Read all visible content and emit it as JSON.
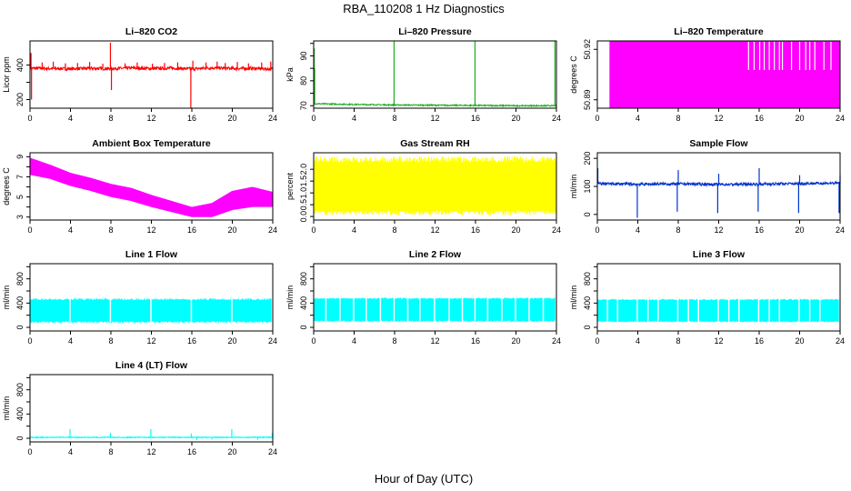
{
  "page": {
    "title": "RBA_110208  1 Hz Diagnostics",
    "x_axis_label": "Hour of Day (UTC)"
  },
  "chart_data": [
    {
      "type": "line",
      "title": "Li–820 CO2",
      "ylabel": "Licor ppm",
      "color": "#ff0000",
      "xlim": [
        0,
        24
      ],
      "xticks": [
        0,
        4,
        8,
        12,
        16,
        20,
        24
      ],
      "ylim": [
        150,
        540
      ],
      "yticks": [
        200,
        300,
        400
      ],
      "yticklabels": [
        "200",
        "",
        "400"
      ],
      "series": [
        {
          "baseline": [
            [
              0,
              382
            ],
            [
              2,
              380
            ],
            [
              4,
              378
            ],
            [
              6,
              381
            ],
            [
              8,
              379
            ],
            [
              10,
              383
            ],
            [
              12,
              380
            ],
            [
              14,
              382
            ],
            [
              16,
              378
            ],
            [
              18,
              384
            ],
            [
              20,
              380
            ],
            [
              22,
              381
            ],
            [
              24,
              376
            ]
          ],
          "noise": 9,
          "spikes": [
            [
              0.1,
              470
            ],
            [
              0.15,
              200
            ],
            [
              1.2,
              415
            ],
            [
              2.3,
              420
            ],
            [
              3.5,
              410
            ],
            [
              4.7,
              412
            ],
            [
              5.9,
              418
            ],
            [
              7.2,
              408
            ],
            [
              7.95,
              530
            ],
            [
              8.05,
              255
            ],
            [
              9.4,
              410
            ],
            [
              10.6,
              415
            ],
            [
              12.1,
              408
            ],
            [
              13.3,
              412
            ],
            [
              14.6,
              416
            ],
            [
              15.9,
              150
            ],
            [
              16.1,
              425
            ],
            [
              17.4,
              415
            ],
            [
              18.5,
              420
            ],
            [
              19.3,
              412
            ],
            [
              20.5,
              418
            ],
            [
              21.6,
              410
            ],
            [
              22.9,
              415
            ],
            [
              23.8,
              420
            ]
          ]
        }
      ]
    },
    {
      "type": "line",
      "title": "Li–820 Pressure",
      "ylabel": "kPa",
      "color": "#22aa22",
      "xlim": [
        0,
        24
      ],
      "xticks": [
        0,
        4,
        8,
        12,
        16,
        20,
        24
      ],
      "ylim": [
        69,
        96
      ],
      "yticks": [
        70,
        75,
        80,
        85,
        90,
        95
      ],
      "yticklabels": [
        "70",
        "",
        "80",
        "",
        "90",
        ""
      ],
      "series": [
        {
          "baseline": [
            [
              0,
              70.8
            ],
            [
              4,
              70.5
            ],
            [
              8,
              70.3
            ],
            [
              12,
              70.2
            ],
            [
              16,
              70.1
            ],
            [
              20,
              70.0
            ],
            [
              24,
              70.0
            ]
          ],
          "noise": 0.25,
          "spikes": [
            [
              0.05,
              93
            ],
            [
              0.1,
              85
            ],
            [
              7.95,
              96
            ],
            [
              15.95,
              96
            ],
            [
              23.85,
              96
            ]
          ]
        }
      ]
    },
    {
      "type": "line",
      "title": "Li–820 Temperature",
      "ylabel": "degrees C",
      "color": "#ff00ff",
      "xlim": [
        0,
        24
      ],
      "xticks": [
        0,
        4,
        8,
        12,
        16,
        20,
        24
      ],
      "ylim": [
        50.885,
        50.925
      ],
      "yticks": [
        50.89,
        50.92
      ],
      "yticklabels": [
        "50.89",
        "50.92"
      ],
      "series": [
        {
          "fill_range": [
            50.885,
            50.925
          ],
          "fill_x": [
            1.2,
            24
          ],
          "gaps": [
            14.95,
            15.5,
            16.05,
            16.5,
            17.0,
            17.5,
            18.0,
            18.3,
            19.2,
            20.0,
            20.6,
            21.0,
            21.5,
            22.4,
            23.1
          ]
        }
      ]
    },
    {
      "type": "line",
      "title": "Ambient Box Temperature",
      "ylabel": "degrees C",
      "color": "#ff00ff",
      "xlim": [
        0,
        24
      ],
      "xticks": [
        0,
        4,
        8,
        12,
        16,
        20,
        24
      ],
      "ylim": [
        2.7,
        9.4
      ],
      "yticks": [
        3,
        4,
        5,
        6,
        7,
        8,
        9
      ],
      "yticklabels": [
        "3",
        "",
        "5",
        "",
        "7",
        "",
        "9"
      ],
      "series": [
        {
          "band_low": [
            [
              0,
              7.2
            ],
            [
              2,
              6.8
            ],
            [
              4,
              6.1
            ],
            [
              6,
              5.6
            ],
            [
              8,
              5.0
            ],
            [
              10,
              4.6
            ],
            [
              12,
              4.0
            ],
            [
              14,
              3.5
            ],
            [
              16,
              3.0
            ],
            [
              18,
              3.0
            ],
            [
              20,
              3.7
            ],
            [
              22,
              4.0
            ],
            [
              24,
              4.0
            ]
          ],
          "band_high": [
            [
              0,
              8.9
            ],
            [
              2,
              8.2
            ],
            [
              4,
              7.4
            ],
            [
              6,
              6.9
            ],
            [
              8,
              6.3
            ],
            [
              10,
              5.9
            ],
            [
              12,
              5.2
            ],
            [
              14,
              4.6
            ],
            [
              16,
              4.0
            ],
            [
              18,
              4.4
            ],
            [
              20,
              5.6
            ],
            [
              22,
              6.0
            ],
            [
              24,
              5.5
            ]
          ]
        }
      ]
    },
    {
      "type": "line",
      "title": "Gas Stream RH",
      "ylabel": "percent",
      "color": "#ffff00",
      "xlim": [
        0,
        24
      ],
      "xticks": [
        0,
        4,
        8,
        12,
        16,
        20,
        24
      ],
      "ylim": [
        -0.15,
        2.7
      ],
      "yticks": [
        0.0,
        0.5,
        1.0,
        1.5,
        2.0
      ],
      "yticklabels": [
        "0.0",
        "0.5",
        "1.0",
        "1.5",
        "2.0"
      ],
      "series": [
        {
          "band_low": [
            [
              0,
              0.25
            ],
            [
              24,
              0.25
            ]
          ],
          "band_high": [
            [
              0,
              2.3
            ],
            [
              24,
              2.3
            ]
          ],
          "band_min": [
            [
              0,
              0.05
            ],
            [
              24,
              0.05
            ]
          ],
          "band_max": [
            [
              0,
              2.55
            ],
            [
              24,
              2.55
            ]
          ]
        }
      ]
    },
    {
      "type": "line",
      "title": "Sample Flow",
      "ylabel": "ml/min",
      "color": "#0033cc",
      "xlim": [
        0,
        24
      ],
      "xticks": [
        0,
        4,
        8,
        12,
        16,
        20,
        24
      ],
      "ylim": [
        -20,
        220
      ],
      "yticks": [
        0,
        100,
        200
      ],
      "yticklabels": [
        "0",
        "100",
        "200"
      ],
      "series": [
        {
          "baseline": [
            [
              0,
              110
            ],
            [
              4,
              108
            ],
            [
              8,
              109
            ],
            [
              12,
              107
            ],
            [
              16,
              108
            ],
            [
              20,
              110
            ],
            [
              24,
              112
            ]
          ],
          "noise": 5,
          "spikes": [
            [
              0.05,
              165
            ],
            [
              3.95,
              -12
            ],
            [
              7.9,
              10
            ],
            [
              8.0,
              158
            ],
            [
              11.9,
              5
            ],
            [
              12.0,
              145
            ],
            [
              15.9,
              10
            ],
            [
              16.0,
              165
            ],
            [
              19.9,
              5
            ],
            [
              20.0,
              140
            ],
            [
              23.9,
              5
            ],
            [
              24.0,
              140
            ]
          ]
        }
      ]
    },
    {
      "type": "line",
      "title": "Line 1 Flow",
      "ylabel": "ml/min",
      "color": "#00ffff",
      "xlim": [
        0,
        24
      ],
      "xticks": [
        0,
        4,
        8,
        12,
        16,
        20,
        24
      ],
      "ylim": [
        -60,
        1050
      ],
      "yticks": [
        0,
        200,
        400,
        600,
        800,
        1000
      ],
      "yticklabels": [
        "0",
        "",
        "400",
        "",
        "800",
        ""
      ],
      "series": [
        {
          "band_low": [
            [
              0,
              100
            ],
            [
              24,
              100
            ]
          ],
          "band_high": [
            [
              0,
              450
            ],
            [
              24,
              450
            ]
          ],
          "band_min": [
            [
              0,
              70
            ],
            [
              24,
              70
            ]
          ],
          "band_max": [
            [
              0,
              480
            ],
            [
              24,
              480
            ]
          ],
          "gaps": [
            3.95,
            7.95,
            11.95,
            15.95,
            19.95,
            23.95
          ]
        }
      ]
    },
    {
      "type": "line",
      "title": "Line 2 Flow",
      "ylabel": "ml/min",
      "color": "#00ffff",
      "xlim": [
        0,
        24
      ],
      "xticks": [
        0,
        4,
        8,
        12,
        16,
        20,
        24
      ],
      "ylim": [
        -60,
        1050
      ],
      "yticks": [
        0,
        200,
        400,
        600,
        800,
        1000
      ],
      "yticklabels": [
        "0",
        "",
        "400",
        "",
        "800",
        ""
      ],
      "series": [
        {
          "band_low": [
            [
              0,
              110
            ],
            [
              24,
              110
            ]
          ],
          "band_high": [
            [
              0,
              470
            ],
            [
              24,
              470
            ]
          ],
          "band_min": [
            [
              0,
              90
            ],
            [
              24,
              90
            ]
          ],
          "band_max": [
            [
              0,
              490
            ],
            [
              24,
              490
            ]
          ],
          "gaps": [
            1.2,
            2.6,
            3.95,
            5.2,
            6.6,
            7.95,
            9.3,
            10.5,
            11.95,
            13.4,
            14.7,
            15.95,
            17.2,
            18.6,
            19.95,
            21.3,
            22.7,
            23.95
          ]
        }
      ]
    },
    {
      "type": "line",
      "title": "Line 3 Flow",
      "ylabel": "ml/min",
      "color": "#00ffff",
      "xlim": [
        0,
        24
      ],
      "xticks": [
        0,
        4,
        8,
        12,
        16,
        20,
        24
      ],
      "ylim": [
        -60,
        1050
      ],
      "yticks": [
        0,
        200,
        400,
        600,
        800,
        1000
      ],
      "yticklabels": [
        "0",
        "",
        "400",
        "",
        "800",
        ""
      ],
      "series": [
        {
          "band_low": [
            [
              0,
              100
            ],
            [
              24,
              100
            ]
          ],
          "band_high": [
            [
              0,
              450
            ],
            [
              24,
              450
            ]
          ],
          "band_min": [
            [
              0,
              85
            ],
            [
              24,
              85
            ]
          ],
          "band_max": [
            [
              0,
              470
            ],
            [
              24,
              470
            ]
          ],
          "gaps": [
            1.0,
            2.0,
            3.95,
            5.0,
            6.0,
            7.95,
            9.0,
            10.0,
            11.95,
            13.0,
            14.0,
            15.95,
            17.0,
            18.0,
            19.95,
            21.0,
            22.0,
            23.95
          ]
        }
      ]
    },
    {
      "type": "line",
      "title": "Line 4 (LT) Flow",
      "ylabel": "ml/min",
      "color": "#00ffff",
      "xlim": [
        0,
        24
      ],
      "xticks": [
        0,
        4,
        8,
        12,
        16,
        20,
        24
      ],
      "ylim": [
        -60,
        1050
      ],
      "yticks": [
        0,
        200,
        400,
        600,
        800,
        1000
      ],
      "yticklabels": [
        "0",
        "",
        "400",
        "",
        "800",
        ""
      ],
      "series": [
        {
          "baseline": [
            [
              0,
              15
            ],
            [
              24,
              15
            ]
          ],
          "noise": 8,
          "spikes": [
            [
              3.95,
              150
            ],
            [
              7.95,
              90
            ],
            [
              11.95,
              150
            ],
            [
              15.95,
              80
            ],
            [
              19.95,
              150
            ],
            [
              23.95,
              90
            ],
            [
              16.5,
              -30
            ],
            [
              18.0,
              -20
            ],
            [
              22.5,
              -25
            ]
          ]
        }
      ]
    }
  ]
}
